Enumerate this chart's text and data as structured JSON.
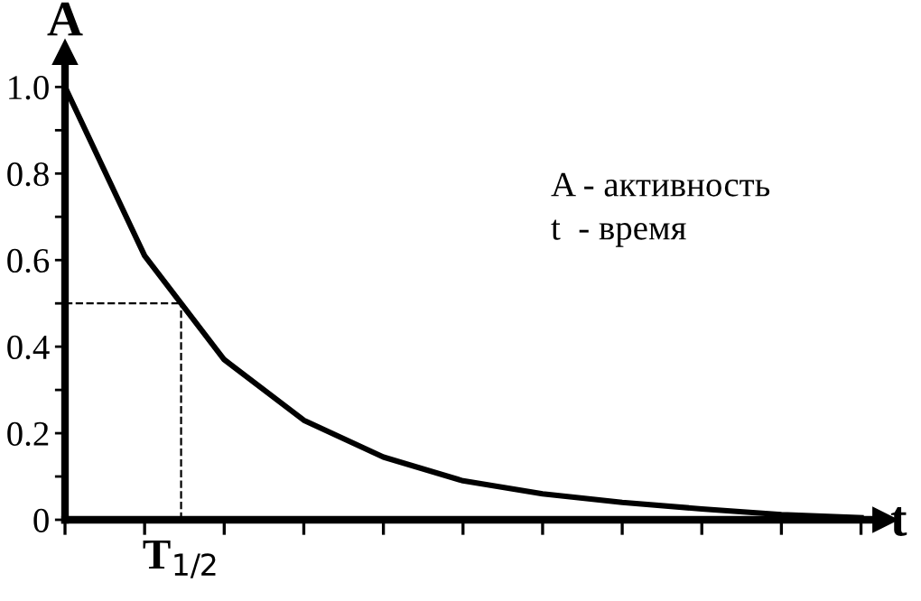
{
  "chart_data": {
    "type": "line",
    "xlabel": "t",
    "ylabel": "A",
    "categories": [
      null,
      null,
      null,
      null,
      null,
      null,
      null,
      null,
      null,
      null,
      null
    ],
    "series": [
      {
        "color": "#000000",
        "values": [
          1.0,
          0.61,
          0.37,
          0.23,
          0.145,
          0.09,
          0.06,
          0.04,
          0.025,
          0.012,
          0.005
        ]
      }
    ],
    "ylim": [
      0,
      1.08
    ],
    "yticks": [
      {
        "value": 0,
        "label": "0"
      },
      {
        "value": 0.1,
        "label": null
      },
      {
        "value": 0.2,
        "label": "0.2"
      },
      {
        "value": 0.3,
        "label": null
      },
      {
        "value": 0.4,
        "label": "0.4"
      },
      {
        "value": 0.5,
        "label": null
      },
      {
        "value": 0.6,
        "label": "0.6"
      },
      {
        "value": 0.7,
        "label": null
      },
      {
        "value": 0.8,
        "label": "0.8"
      },
      {
        "value": 0.9,
        "label": null
      },
      {
        "value": 1.0,
        "label": "1.0"
      }
    ],
    "ref_lines": [
      {
        "axis": "y",
        "value": 0.5,
        "line_style": "dashed",
        "color": "#000000"
      }
    ],
    "annotations": [
      "T$_{1/2}$",
      "A - активность",
      "t  - время"
    ],
    "grid": false,
    "marker": "none",
    "line_style": "solid"
  }
}
